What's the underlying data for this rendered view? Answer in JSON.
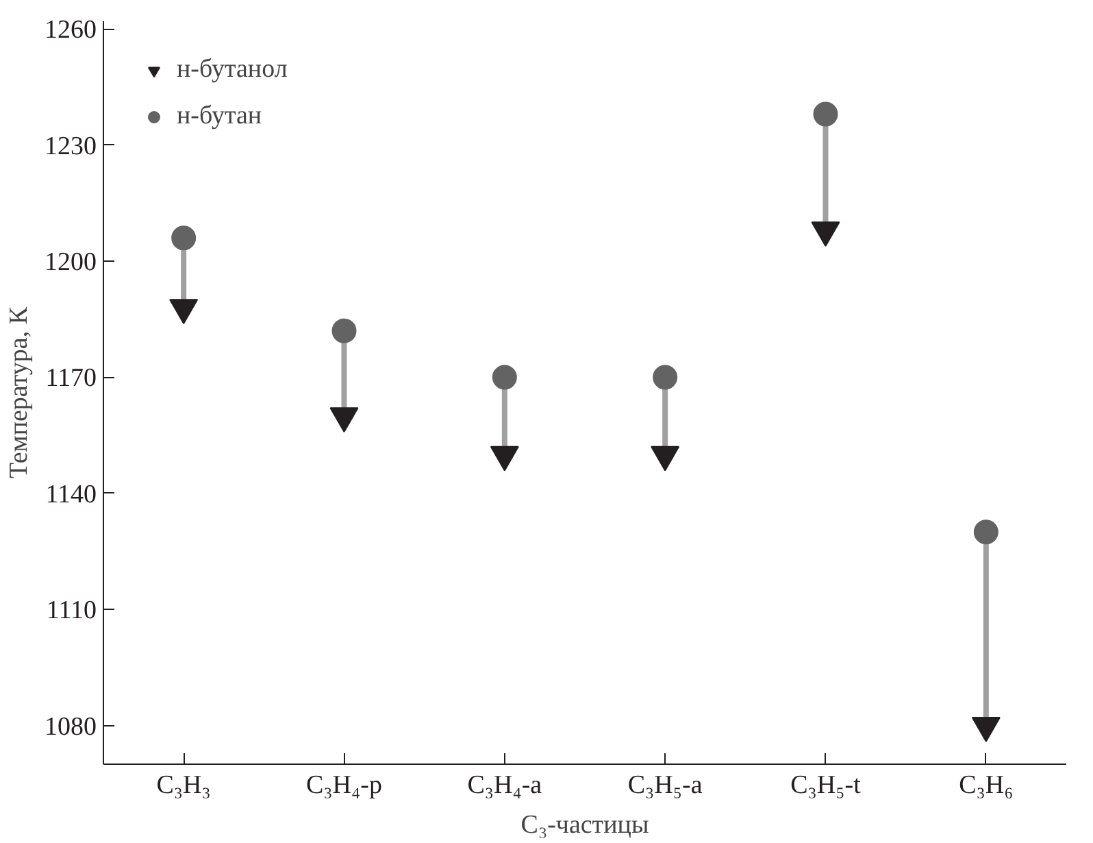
{
  "chart_data": {
    "type": "scatter",
    "xlabel": "C₃-частицы",
    "ylabel": "Температура, К",
    "categories": [
      "C₃H₃",
      "C₃H₄-p",
      "C₃H₄-a",
      "C₃H₅-a",
      "C₃H₅-t",
      "C₃H₆"
    ],
    "series": [
      {
        "name": "н-бутанол",
        "color": "#231f20",
        "marker": "triangle",
        "values": [
          1188,
          1160,
          1150,
          1150,
          1208,
          1080
        ]
      },
      {
        "name": "н-бутан",
        "color": "#636363",
        "marker": "circle",
        "values": [
          1206,
          1182,
          1170,
          1170,
          1238,
          1130
        ]
      }
    ],
    "ylim": [
      1070,
      1262
    ],
    "yticks": [
      1080,
      1110,
      1140,
      1170,
      1200,
      1230,
      1260
    ],
    "grid": false,
    "legend": "top left"
  }
}
